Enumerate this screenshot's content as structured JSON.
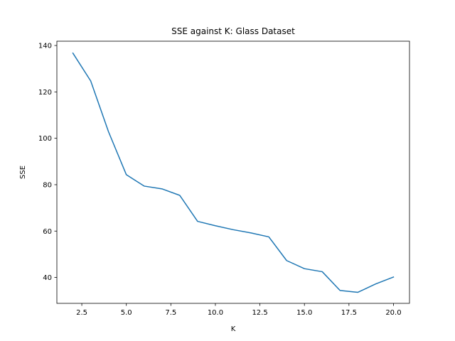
{
  "chart_data": {
    "type": "line",
    "title": "SSE against K: Glass Dataset",
    "xlabel": "K",
    "ylabel": "SSE",
    "xlim": [
      1.1,
      20.9
    ],
    "ylim": [
      28.85,
      141.85
    ],
    "xticks": [
      2.5,
      5.0,
      7.5,
      10.0,
      12.5,
      15.0,
      17.5,
      20.0
    ],
    "xtick_labels": [
      "2.5",
      "5.0",
      "7.5",
      "10.0",
      "12.5",
      "15.0",
      "17.5",
      "20.0"
    ],
    "yticks": [
      40,
      60,
      80,
      100,
      120,
      140
    ],
    "ytick_labels": [
      "40",
      "60",
      "80",
      "100",
      "120",
      "140"
    ],
    "grid": false,
    "series": [
      {
        "color": "#1f77b4",
        "x": [
          2,
          3,
          4,
          5,
          6,
          7,
          8,
          9,
          10,
          11,
          12,
          13,
          14,
          15,
          16,
          17,
          18,
          19,
          20
        ],
        "y": [
          136.7,
          124.7,
          102.8,
          84.3,
          79.4,
          78.2,
          75.4,
          64.2,
          62.3,
          60.6,
          59.2,
          57.5,
          47.3,
          43.8,
          42.5,
          34.4,
          33.6,
          37.2,
          40.2
        ]
      }
    ]
  }
}
